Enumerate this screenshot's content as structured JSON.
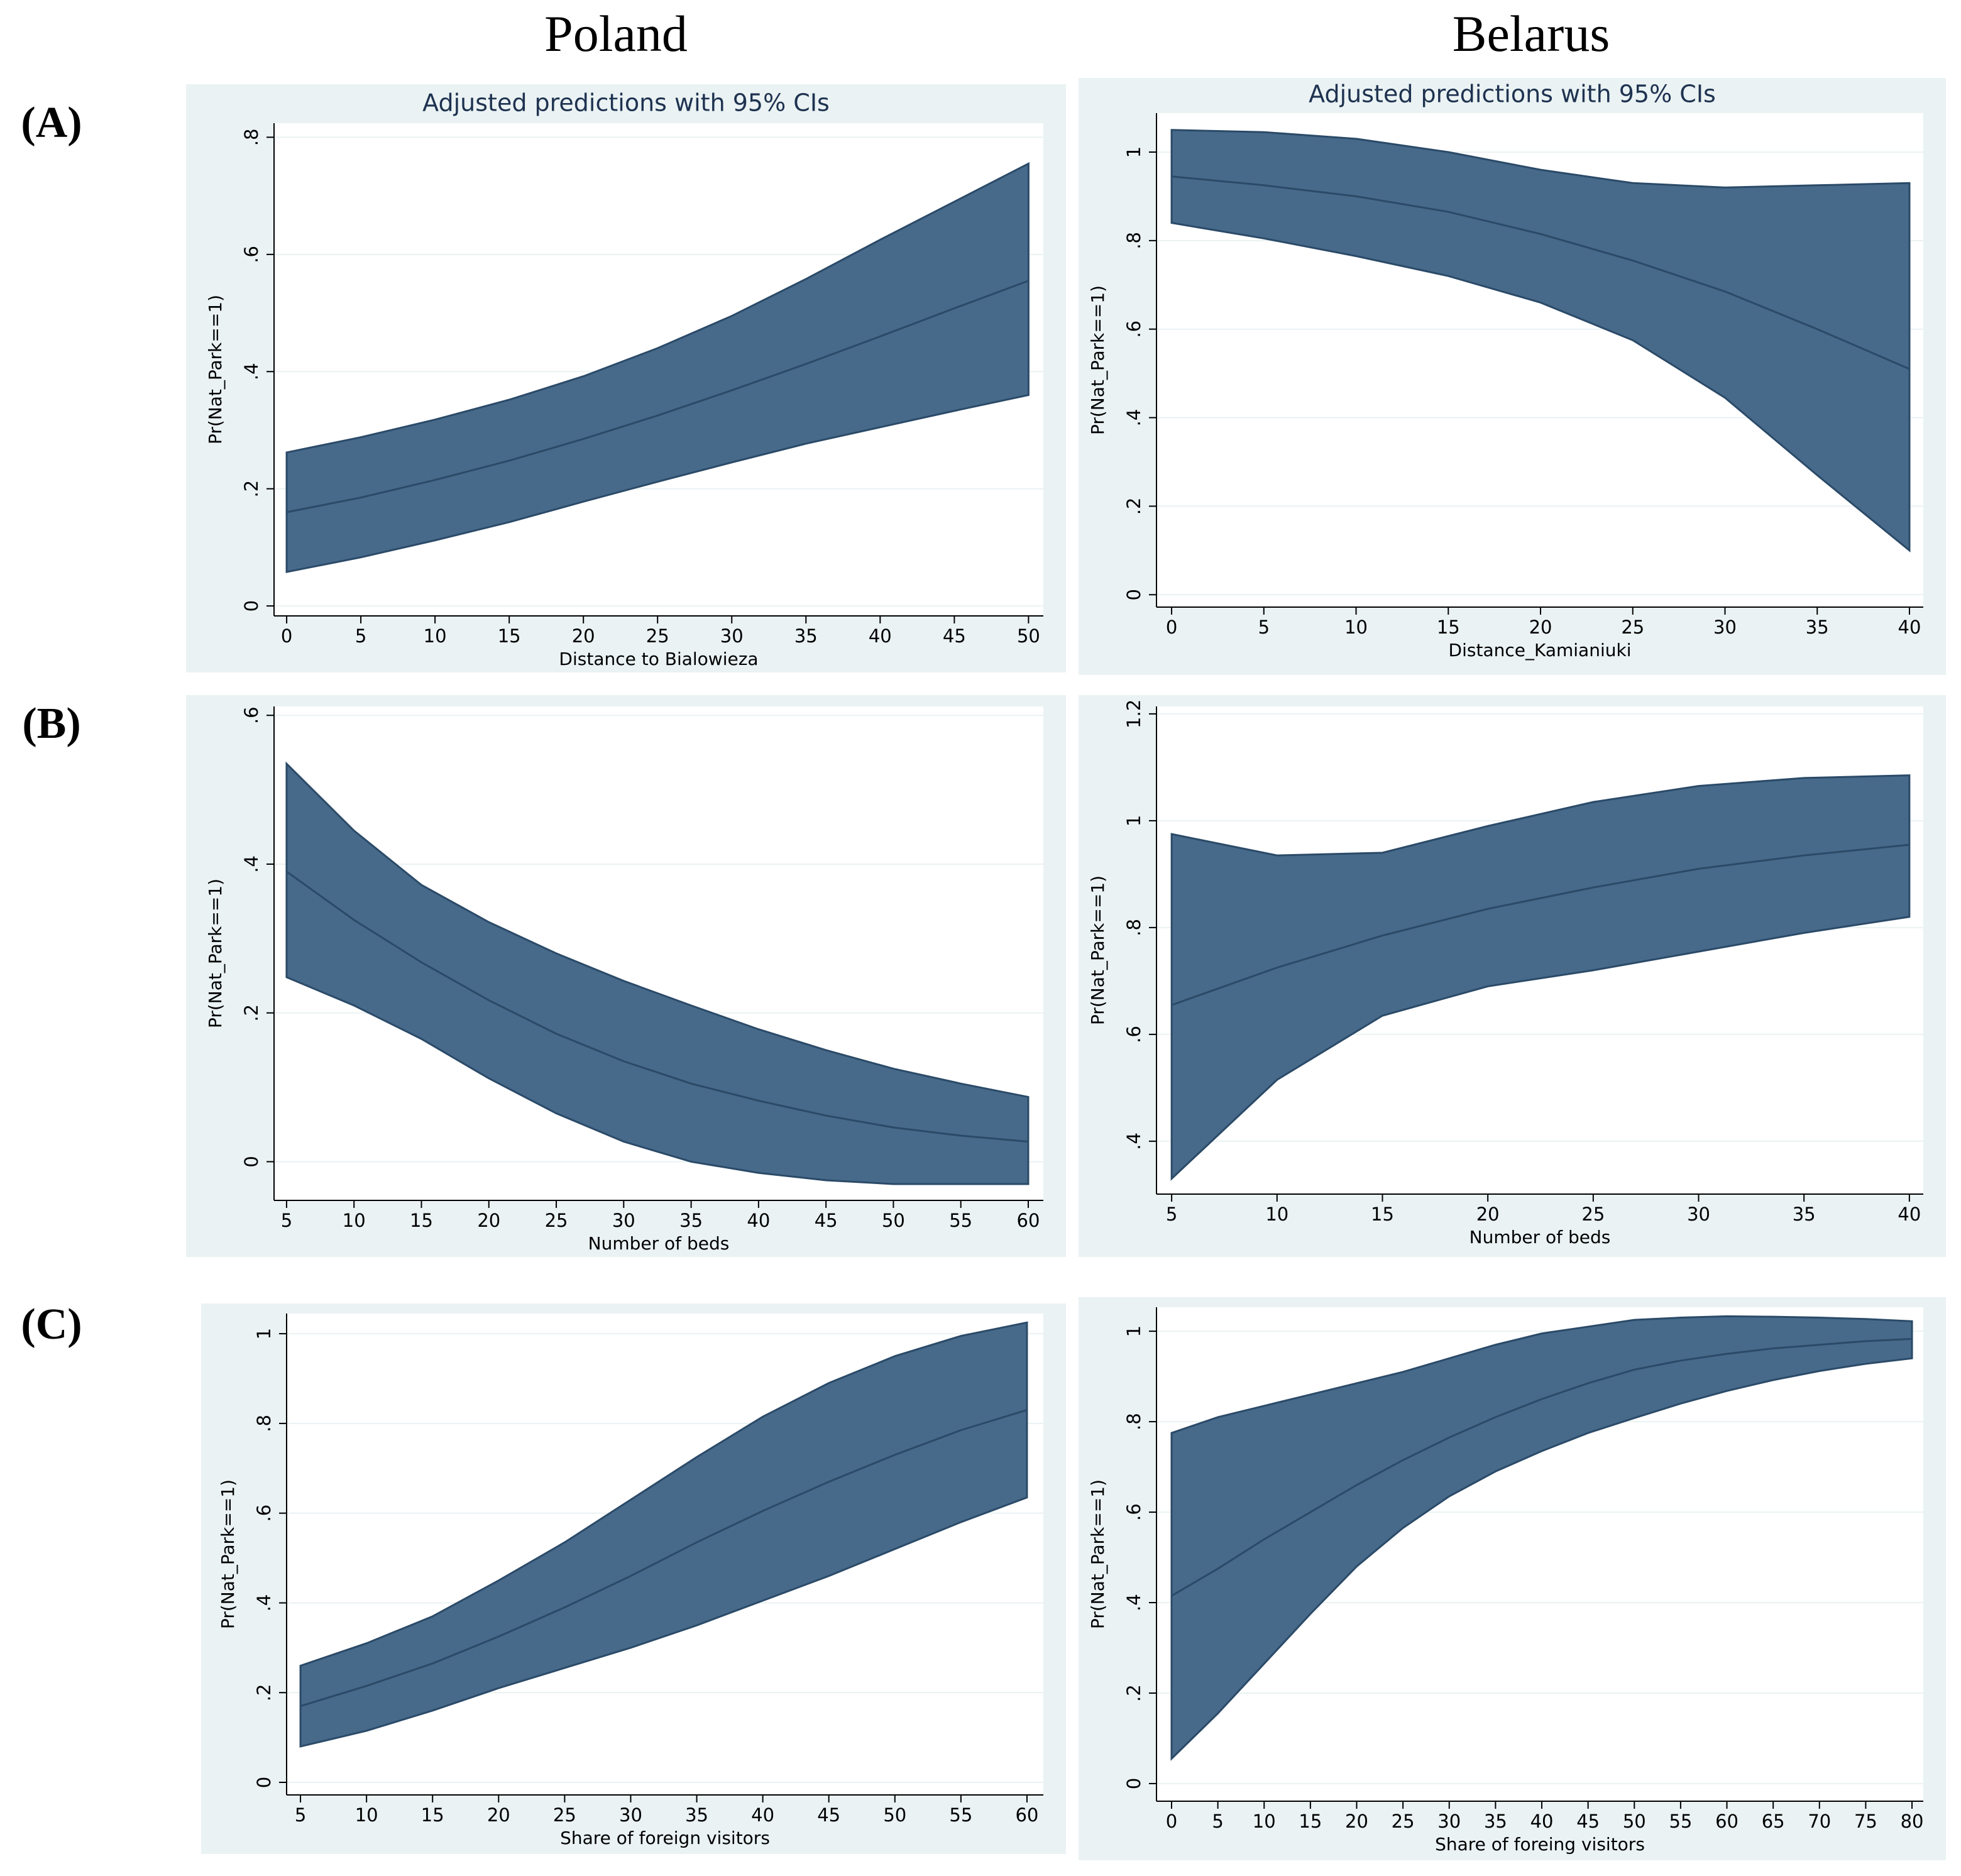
{
  "columns": [
    "Poland",
    "Belarus"
  ],
  "rows": [
    "(A)",
    "(B)",
    "(C)"
  ],
  "chart_data": [
    {
      "type": "band",
      "title": "Adjusted predictions with 95% CIs",
      "x_label": "Distance to Bialowieza",
      "y_label": "Pr(Nat_Park==1)",
      "color": "#476a8a",
      "grid": true,
      "x": [
        0,
        5,
        10,
        15,
        20,
        25,
        30,
        35,
        40,
        45,
        50
      ],
      "values": [
        0.16,
        0.185,
        0.215,
        0.248,
        0.285,
        0.325,
        0.368,
        0.413,
        0.46,
        0.508,
        0.555
      ],
      "ci_upper": [
        0.262,
        0.288,
        0.318,
        0.352,
        0.392,
        0.44,
        0.495,
        0.558,
        0.625,
        0.69,
        0.755
      ],
      "ci_lower": [
        0.058,
        0.083,
        0.112,
        0.143,
        0.178,
        0.212,
        0.245,
        0.277,
        0.305,
        0.333,
        0.36
      ],
      "xlim": [
        -0.85,
        51
      ],
      "ylim": [
        -0.017,
        0.824
      ],
      "xticks": [
        0,
        5,
        10,
        15,
        20,
        25,
        30,
        35,
        40,
        45,
        50
      ],
      "yticks": [
        0,
        {
          "value": 0.2,
          "label": ".2"
        },
        {
          "value": 0.4,
          "label": ".4"
        },
        {
          "value": 0.6,
          "label": ".6"
        },
        {
          "value": 0.8,
          "label": ".8"
        }
      ]
    },
    {
      "type": "band",
      "title": "Adjusted predictions with 95% CIs",
      "x_label": "Distance_Kamianiuki",
      "y_label": "Pr(Nat_Park==1)",
      "color": "#476a8a",
      "grid": true,
      "x": [
        0,
        5,
        10,
        15,
        20,
        25,
        30,
        35,
        40
      ],
      "values": [
        0.945,
        0.925,
        0.9,
        0.865,
        0.815,
        0.755,
        0.685,
        0.6,
        0.51
      ],
      "ci_upper": [
        1.05,
        1.045,
        1.03,
        1.0,
        0.96,
        0.93,
        0.92,
        0.925,
        0.93
      ],
      "ci_lower": [
        0.84,
        0.805,
        0.765,
        0.72,
        0.66,
        0.575,
        0.445,
        0.27,
        0.1
      ],
      "xlim": [
        -0.82,
        40.75
      ],
      "ylim": [
        -0.028,
        1.088
      ],
      "xticks": [
        0,
        5,
        10,
        15,
        20,
        25,
        30,
        35,
        40
      ],
      "yticks": [
        0,
        {
          "value": 0.2,
          "label": ".2"
        },
        {
          "value": 0.4,
          "label": ".4"
        },
        {
          "value": 0.6,
          "label": ".6"
        },
        {
          "value": 0.8,
          "label": ".8"
        },
        1
      ]
    },
    {
      "type": "band",
      "x_label": "Number of beds",
      "y_label": "Pr(Nat_Park==1)",
      "color": "#476a8a",
      "grid": true,
      "x": [
        5,
        10,
        15,
        20,
        25,
        30,
        35,
        40,
        45,
        50,
        55,
        60
      ],
      "values": [
        0.39,
        0.325,
        0.268,
        0.217,
        0.172,
        0.135,
        0.105,
        0.082,
        0.062,
        0.046,
        0.035,
        0.027
      ],
      "ci_upper": [
        0.535,
        0.445,
        0.372,
        0.322,
        0.28,
        0.243,
        0.21,
        0.178,
        0.15,
        0.125,
        0.105,
        0.087
      ],
      "ci_lower": [
        0.248,
        0.21,
        0.165,
        0.112,
        0.065,
        0.027,
        0.0,
        -0.015,
        -0.025,
        -0.03,
        -0.03,
        -0.03
      ],
      "xlim": [
        4.07,
        61.12
      ],
      "ylim": [
        -0.052,
        0.612
      ],
      "xticks": [
        5,
        10,
        15,
        20,
        25,
        30,
        35,
        40,
        45,
        50,
        55,
        60
      ],
      "yticks": [
        0,
        {
          "value": 0.2,
          "label": ".2"
        },
        {
          "value": 0.4,
          "label": ".4"
        },
        {
          "value": 0.6,
          "label": ".6"
        }
      ]
    },
    {
      "type": "band",
      "x_label": "Number of beds",
      "y_label": "Pr(Nat_Park==1)",
      "color": "#476a8a",
      "grid": true,
      "x": [
        5,
        10,
        15,
        20,
        25,
        30,
        35,
        40
      ],
      "values": [
        0.655,
        0.725,
        0.785,
        0.835,
        0.875,
        0.91,
        0.935,
        0.955
      ],
      "ci_upper": [
        0.975,
        0.935,
        0.94,
        0.99,
        1.035,
        1.065,
        1.08,
        1.085
      ],
      "ci_lower": [
        0.33,
        0.515,
        0.635,
        0.69,
        0.72,
        0.755,
        0.79,
        0.82
      ],
      "xlim": [
        4.28,
        40.66
      ],
      "ylim": [
        0.301,
        1.214
      ],
      "xticks": [
        5,
        10,
        15,
        20,
        25,
        30,
        35,
        40
      ],
      "yticks": [
        {
          "value": 0.4,
          "label": ".4"
        },
        {
          "value": 0.6,
          "label": ".6"
        },
        {
          "value": 0.8,
          "label": ".8"
        },
        1,
        {
          "value": 1.2,
          "label": "1.2"
        }
      ]
    },
    {
      "type": "band",
      "x_label": "Share of foreign visitors",
      "y_label": "Pr(Nat_Park==1)",
      "color": "#476a8a",
      "grid": true,
      "x": [
        5,
        10,
        15,
        20,
        25,
        30,
        35,
        40,
        45,
        50,
        55,
        60
      ],
      "values": [
        0.17,
        0.215,
        0.265,
        0.325,
        0.39,
        0.46,
        0.535,
        0.605,
        0.67,
        0.73,
        0.785,
        0.83
      ],
      "ci_upper": [
        0.26,
        0.31,
        0.37,
        0.45,
        0.535,
        0.63,
        0.725,
        0.815,
        0.89,
        0.95,
        0.995,
        1.025
      ],
      "ci_lower": [
        0.08,
        0.115,
        0.16,
        0.21,
        0.255,
        0.3,
        0.35,
        0.405,
        0.46,
        0.52,
        0.58,
        0.635
      ],
      "xlim": [
        3.95,
        61.24
      ],
      "ylim": [
        -0.028,
        1.045
      ],
      "xticks": [
        5,
        10,
        15,
        20,
        25,
        30,
        35,
        40,
        45,
        50,
        55,
        60
      ],
      "yticks": [
        0,
        {
          "value": 0.2,
          "label": ".2"
        },
        {
          "value": 0.4,
          "label": ".4"
        },
        {
          "value": 0.6,
          "label": ".6"
        },
        {
          "value": 0.8,
          "label": ".8"
        },
        1
      ]
    },
    {
      "type": "band",
      "x_label": "Share of foreing visitors",
      "y_label": "Pr(Nat_Park==1)",
      "color": "#476a8a",
      "grid": true,
      "x": [
        0,
        5,
        10,
        15,
        20,
        25,
        30,
        35,
        40,
        45,
        50,
        55,
        60,
        65,
        70,
        75,
        80
      ],
      "values": [
        0.415,
        0.475,
        0.54,
        0.6,
        0.66,
        0.715,
        0.765,
        0.81,
        0.85,
        0.885,
        0.915,
        0.935,
        0.95,
        0.962,
        0.97,
        0.978,
        0.983
      ],
      "ci_upper": [
        0.775,
        0.81,
        0.835,
        0.86,
        0.885,
        0.91,
        0.94,
        0.97,
        0.995,
        1.01,
        1.025,
        1.03,
        1.033,
        1.032,
        1.03,
        1.027,
        1.022
      ],
      "ci_lower": [
        0.055,
        0.155,
        0.265,
        0.375,
        0.48,
        0.565,
        0.635,
        0.69,
        0.735,
        0.775,
        0.808,
        0.84,
        0.868,
        0.892,
        0.912,
        0.928,
        0.94
      ],
      "xlim": [
        -1.63,
        81.22
      ],
      "ylim": [
        -0.039,
        1.053
      ],
      "xticks": [
        0,
        5,
        10,
        15,
        20,
        25,
        30,
        35,
        40,
        45,
        50,
        55,
        60,
        65,
        70,
        75,
        80
      ],
      "yticks": [
        0,
        {
          "value": 0.2,
          "label": ".2"
        },
        {
          "value": 0.4,
          "label": ".4"
        },
        {
          "value": 0.6,
          "label": ".6"
        },
        {
          "value": 0.8,
          "label": ".8"
        },
        1
      ]
    }
  ]
}
